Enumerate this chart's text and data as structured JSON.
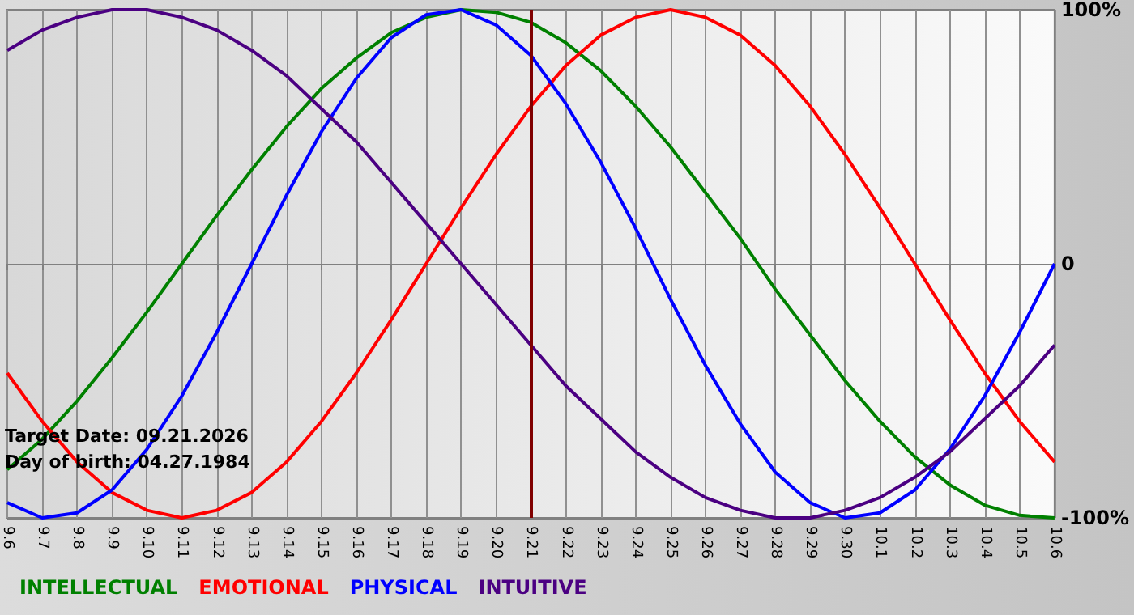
{
  "chart_data": {
    "type": "line",
    "categories": [
      "9.6",
      "9.7",
      "9.8",
      "9.9",
      "9.10",
      "9.11",
      "9.12",
      "9.13",
      "9.14",
      "9.15",
      "9.16",
      "9.17",
      "9.18",
      "9.19",
      "9.20",
      "9.21",
      "9.22",
      "9.23",
      "9.24",
      "9.25",
      "9.26",
      "9.27",
      "9.28",
      "9.29",
      "9.30",
      "10.1",
      "10.2",
      "10.3",
      "10.4",
      "10.5",
      "10.6"
    ],
    "series": [
      {
        "name": "INTELLECTUAL",
        "color": "#008000",
        "values": [
          -81,
          -69,
          -54,
          -37,
          -19,
          0,
          19,
          37,
          54,
          69,
          81,
          91,
          97,
          100,
          99,
          95,
          87,
          76,
          62,
          46,
          28,
          10,
          -10,
          -28,
          -46,
          -62,
          -76,
          -87,
          -95,
          -99,
          -100
        ]
      },
      {
        "name": "EMOTIONAL",
        "color": "#ff0000",
        "values": [
          -43,
          -62,
          -78,
          -90,
          -97,
          -100,
          -97,
          -90,
          -78,
          -62,
          -43,
          -22,
          0,
          22,
          43,
          62,
          78,
          90,
          97,
          100,
          97,
          90,
          78,
          62,
          43,
          22,
          0,
          -22,
          -43,
          -62,
          -78
        ]
      },
      {
        "name": "PHYSICAL",
        "color": "#0000ff",
        "values": [
          -94,
          -100,
          -98,
          -89,
          -73,
          -52,
          -27,
          0,
          27,
          52,
          73,
          89,
          98,
          100,
          94,
          82,
          63,
          40,
          14,
          -14,
          -40,
          -63,
          -82,
          -94,
          -100,
          -98,
          -89,
          -73,
          -52,
          -27,
          0
        ]
      },
      {
        "name": "INTUITIVE",
        "color": "#4b0082",
        "values": [
          84,
          92,
          97,
          100,
          100,
          97,
          92,
          84,
          74,
          61,
          48,
          32,
          16,
          0,
          -16,
          -32,
          -48,
          -61,
          -74,
          -84,
          -92,
          -97,
          -100,
          -100,
          -97,
          -92,
          -84,
          -74,
          -61,
          -48,
          -32
        ]
      }
    ],
    "ylim": [
      -100,
      100
    ],
    "yticks": [
      {
        "value": -100,
        "label": "-100%"
      },
      0,
      {
        "value": 100,
        "label": "100%"
      }
    ],
    "ref_lines": [
      {
        "axis": "x",
        "value": "9.21",
        "color": "#800000"
      }
    ],
    "annotations": [
      "Target Date: 09.21.2026",
      "Day of birth: 04.27.1984"
    ],
    "grid": true,
    "legend": "bottom left",
    "marker": "none",
    "line_style": "solid"
  }
}
